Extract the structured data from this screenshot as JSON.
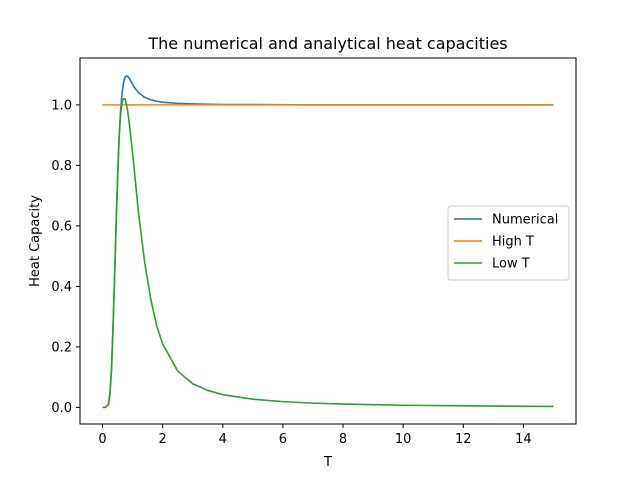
{
  "chart_data": {
    "type": "line",
    "title": "The numerical and analytical heat capacities",
    "xlabel": "T",
    "ylabel": "Heat Capacity",
    "xlim": [
      -0.75,
      15.75
    ],
    "ylim": [
      -0.055,
      1.155
    ],
    "xticks": [
      0,
      2,
      4,
      6,
      8,
      10,
      12,
      14
    ],
    "xtick_labels": [
      "0",
      "2",
      "4",
      "6",
      "8",
      "10",
      "12",
      "14"
    ],
    "yticks": [
      0.0,
      0.2,
      0.4,
      0.6,
      0.8,
      1.0
    ],
    "ytick_labels": [
      "0.0",
      "0.2",
      "0.4",
      "0.6",
      "0.8",
      "1.0"
    ],
    "grid": false,
    "legend": "center-right",
    "series": [
      {
        "name": "Numerical",
        "color": "#1f77b4",
        "x": [
          0.0,
          0.1,
          0.2,
          0.25,
          0.3,
          0.35,
          0.4,
          0.45,
          0.5,
          0.55,
          0.6,
          0.65,
          0.7,
          0.75,
          0.8,
          0.85,
          0.9,
          1.0,
          1.1,
          1.2,
          1.4,
          1.6,
          1.8,
          2.0,
          2.5,
          3.0,
          4.0,
          5.0,
          7.0,
          10.0,
          15.0
        ],
        "y": [
          0.0,
          0.0,
          0.01,
          0.05,
          0.13,
          0.27,
          0.43,
          0.6,
          0.76,
          0.89,
          0.98,
          1.04,
          1.075,
          1.092,
          1.096,
          1.093,
          1.086,
          1.068,
          1.052,
          1.04,
          1.025,
          1.017,
          1.012,
          1.009,
          1.005,
          1.003,
          1.001,
          1.001,
          1.0,
          1.0,
          1.0
        ]
      },
      {
        "name": "High T",
        "color": "#ff7f0e",
        "x": [
          0.0,
          15.0
        ],
        "y": [
          1.0,
          1.0
        ]
      },
      {
        "name": "Low T",
        "color": "#2ca02c",
        "x": [
          0.0,
          0.1,
          0.2,
          0.25,
          0.3,
          0.35,
          0.4,
          0.45,
          0.5,
          0.55,
          0.6,
          0.65,
          0.7,
          0.75,
          0.8,
          0.85,
          0.9,
          1.0,
          1.1,
          1.2,
          1.4,
          1.6,
          1.8,
          2.0,
          2.5,
          3.0,
          3.5,
          4.0,
          5.0,
          6.0,
          7.0,
          8.0,
          10.0,
          12.0,
          15.0
        ],
        "y": [
          0.0,
          0.0,
          0.01,
          0.05,
          0.13,
          0.27,
          0.43,
          0.6,
          0.76,
          0.89,
          0.97,
          1.01,
          1.02,
          1.02,
          1.0,
          0.97,
          0.93,
          0.84,
          0.74,
          0.64,
          0.48,
          0.36,
          0.27,
          0.21,
          0.12,
          0.078,
          0.056,
          0.042,
          0.027,
          0.019,
          0.014,
          0.011,
          0.007,
          0.005,
          0.003
        ]
      }
    ]
  }
}
